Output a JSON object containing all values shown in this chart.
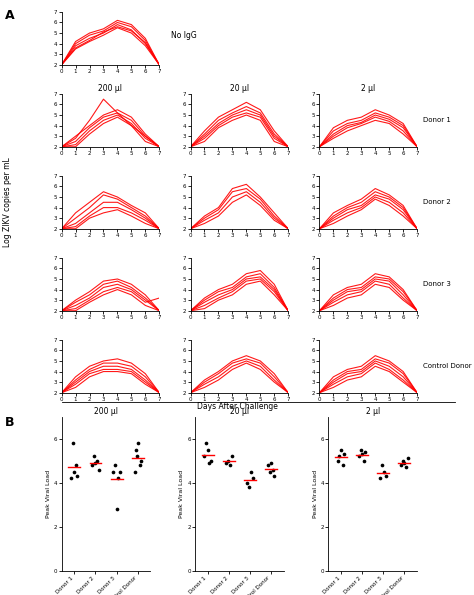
{
  "panel_A_label": "A",
  "panel_B_label": "B",
  "no_igg_title": "No IgG",
  "col_titles": [
    "200 μl",
    "20 μl",
    "2 μl"
  ],
  "row_labels": [
    "Donor 1",
    "Donor 2",
    "Donor 3",
    "Control Donor"
  ],
  "x_axis_label": "Days After Challenge",
  "y_axis_label": "Log ZIKV copies per mL",
  "line_color": "#FF0000",
  "line_alpha": 0.9,
  "line_width": 0.8,
  "days": [
    0,
    1,
    2,
    3,
    4,
    5,
    6,
    7
  ],
  "no_igg_curves": [
    [
      2,
      3.5,
      4.2,
      4.8,
      5.5,
      5.0,
      3.8,
      2.0
    ],
    [
      2,
      3.8,
      4.5,
      5.0,
      5.8,
      5.3,
      4.0,
      2.0
    ],
    [
      2,
      4.0,
      4.8,
      5.2,
      6.0,
      5.6,
      4.3,
      2.0
    ],
    [
      2,
      4.2,
      5.0,
      5.4,
      6.2,
      5.8,
      4.5,
      2.0
    ],
    [
      2,
      3.6,
      4.3,
      5.1,
      5.6,
      5.2,
      4.1,
      2.0
    ]
  ],
  "grid_curves": {
    "0": {
      "0": [
        [
          2,
          2.8,
          4.5,
          6.5,
          5.2,
          4.0,
          3.0,
          2.0
        ],
        [
          2,
          3.0,
          4.0,
          5.0,
          5.5,
          4.8,
          3.2,
          2.0
        ],
        [
          2,
          2.5,
          3.8,
          4.8,
          5.2,
          4.5,
          3.0,
          2.0
        ],
        [
          2,
          2.2,
          3.5,
          4.5,
          5.0,
          4.2,
          2.8,
          2.0
        ],
        [
          2,
          2.0,
          3.2,
          4.2,
          4.8,
          4.0,
          2.5,
          2.0
        ]
      ],
      "1": [
        [
          2,
          3.5,
          4.8,
          5.5,
          6.2,
          5.5,
          3.5,
          2.0
        ],
        [
          2,
          3.2,
          4.5,
          5.2,
          5.8,
          5.2,
          3.2,
          2.0
        ],
        [
          2,
          3.0,
          4.2,
          5.0,
          5.5,
          5.0,
          3.0,
          2.0
        ],
        [
          2,
          2.8,
          4.0,
          4.8,
          5.2,
          4.8,
          2.8,
          2.0
        ],
        [
          2,
          2.5,
          3.8,
          4.5,
          5.0,
          4.5,
          2.5,
          2.0
        ]
      ],
      "2": [
        [
          2,
          3.8,
          4.5,
          4.8,
          5.5,
          5.0,
          4.2,
          2.0
        ],
        [
          2,
          3.5,
          4.2,
          4.5,
          5.2,
          4.8,
          4.0,
          2.0
        ],
        [
          2,
          3.2,
          4.0,
          4.3,
          5.0,
          4.6,
          3.8,
          2.0
        ],
        [
          2,
          3.0,
          3.8,
          4.2,
          4.8,
          4.4,
          3.5,
          2.0
        ],
        [
          2,
          2.8,
          3.5,
          4.0,
          4.5,
          4.2,
          3.2,
          2.0
        ]
      ]
    },
    "1": {
      "0": [
        [
          2,
          3.5,
          4.5,
          5.5,
          5.0,
          4.2,
          3.5,
          2.0
        ],
        [
          2,
          3.0,
          4.0,
          5.2,
          4.8,
          4.0,
          3.2,
          2.0
        ],
        [
          2,
          2.5,
          3.5,
          4.5,
          4.5,
          3.8,
          3.0,
          2.0
        ],
        [
          2,
          2.2,
          3.2,
          4.0,
          4.0,
          3.5,
          2.8,
          2.0
        ],
        [
          2,
          2.0,
          3.0,
          3.5,
          3.8,
          3.2,
          2.5,
          2.0
        ]
      ],
      "1": [
        [
          2,
          3.2,
          4.0,
          5.8,
          6.2,
          5.0,
          3.5,
          2.0
        ],
        [
          2,
          3.0,
          3.8,
          5.5,
          5.8,
          4.8,
          3.2,
          2.0
        ],
        [
          2,
          2.8,
          3.5,
          5.0,
          5.5,
          4.5,
          3.0,
          2.0
        ],
        [
          2,
          2.5,
          3.2,
          4.5,
          5.2,
          4.2,
          2.8,
          2.0
        ]
      ],
      "2": [
        [
          2,
          3.5,
          4.2,
          4.8,
          5.8,
          5.2,
          4.2,
          2.0
        ],
        [
          2,
          3.2,
          4.0,
          4.5,
          5.5,
          5.0,
          4.0,
          2.0
        ],
        [
          2,
          3.0,
          3.8,
          4.2,
          5.2,
          4.8,
          3.8,
          2.0
        ],
        [
          2,
          2.8,
          3.5,
          4.0,
          5.0,
          4.5,
          3.5,
          2.0
        ],
        [
          2,
          2.5,
          3.2,
          3.8,
          4.8,
          4.2,
          3.2,
          2.0
        ]
      ]
    },
    "2": {
      "0": [
        [
          2,
          3.0,
          3.8,
          4.8,
          5.0,
          4.5,
          3.5,
          2.0
        ],
        [
          2,
          2.8,
          3.5,
          4.5,
          4.8,
          4.2,
          3.2,
          2.0
        ],
        [
          2,
          2.5,
          3.2,
          4.2,
          4.5,
          4.0,
          3.0,
          2.0
        ],
        [
          2,
          2.2,
          3.0,
          3.8,
          4.2,
          3.8,
          2.8,
          3.2
        ],
        [
          2,
          2.0,
          2.8,
          3.5,
          4.0,
          3.5,
          2.5,
          2.0
        ]
      ],
      "1": [
        [
          2,
          3.2,
          4.0,
          4.5,
          5.5,
          5.8,
          4.5,
          2.0
        ],
        [
          2,
          3.0,
          3.8,
          4.2,
          5.2,
          5.5,
          4.2,
          2.0
        ],
        [
          2,
          2.8,
          3.5,
          4.0,
          5.0,
          5.2,
          4.0,
          2.0
        ],
        [
          2,
          2.5,
          3.2,
          3.8,
          4.8,
          5.0,
          3.8,
          2.0
        ],
        [
          2,
          2.2,
          3.0,
          3.5,
          4.5,
          4.8,
          3.5,
          2.0
        ]
      ],
      "2": [
        [
          2,
          3.5,
          4.2,
          4.5,
          5.5,
          5.2,
          4.0,
          2.0
        ],
        [
          2,
          3.2,
          4.0,
          4.2,
          5.2,
          5.0,
          3.8,
          2.0
        ],
        [
          2,
          3.0,
          3.8,
          4.0,
          5.0,
          4.8,
          3.5,
          2.0
        ],
        [
          2,
          2.8,
          3.5,
          3.8,
          4.8,
          4.5,
          3.2,
          2.0
        ],
        [
          2,
          2.5,
          3.2,
          3.5,
          4.5,
          4.2,
          3.0,
          2.0
        ]
      ]
    },
    "3": {
      "0": [
        [
          2,
          3.5,
          4.5,
          5.0,
          5.2,
          4.8,
          3.8,
          2.0
        ],
        [
          2,
          3.2,
          4.2,
          4.8,
          4.8,
          4.5,
          3.5,
          2.0
        ],
        [
          2,
          3.0,
          4.0,
          4.5,
          4.5,
          4.2,
          3.2,
          2.0
        ],
        [
          2,
          2.8,
          3.8,
          4.2,
          4.2,
          4.0,
          3.0,
          2.0
        ],
        [
          2,
          2.5,
          3.5,
          4.0,
          4.0,
          3.8,
          2.8,
          2.0
        ]
      ],
      "1": [
        [
          2,
          3.2,
          4.0,
          5.0,
          5.5,
          5.0,
          3.8,
          2.0
        ],
        [
          2,
          3.0,
          3.8,
          4.8,
          5.2,
          4.8,
          3.5,
          2.0
        ],
        [
          2,
          2.8,
          3.5,
          4.5,
          5.0,
          4.5,
          3.2,
          2.0
        ],
        [
          2,
          2.5,
          3.2,
          4.2,
          4.8,
          4.2,
          3.0,
          2.0
        ]
      ],
      "2": [
        [
          2,
          3.5,
          4.2,
          4.5,
          5.5,
          5.0,
          4.0,
          2.0
        ],
        [
          2,
          3.2,
          4.0,
          4.2,
          5.2,
          4.8,
          3.8,
          2.0
        ],
        [
          2,
          3.0,
          3.8,
          4.0,
          5.0,
          4.5,
          3.5,
          2.0
        ],
        [
          2,
          2.8,
          3.5,
          3.8,
          4.8,
          4.2,
          3.2,
          2.0
        ],
        [
          2,
          2.5,
          3.2,
          3.5,
          4.5,
          4.0,
          3.0,
          2.0
        ]
      ]
    }
  },
  "scatter_B": {
    "200": {
      "Donor 1": [
        4.2,
        5.8,
        4.5,
        4.8,
        4.3
      ],
      "Donor 2": [
        4.8,
        5.2,
        4.9,
        5.0,
        4.6
      ],
      "Donor 3": [
        4.5,
        4.8,
        2.8,
        4.2,
        4.5
      ],
      "Control Donor": [
        4.5,
        5.5,
        5.2,
        5.8,
        4.8,
        5.0
      ]
    },
    "20": {
      "Donor 1": [
        5.2,
        5.8,
        5.5,
        4.9,
        5.0
      ],
      "Donor 2": [
        4.9,
        5.0,
        4.8,
        5.2
      ],
      "Donor 3": [
        4.0,
        3.8,
        4.5,
        4.2
      ],
      "Control Donor": [
        4.8,
        4.5,
        4.9,
        4.6,
        4.3
      ]
    },
    "2": {
      "Donor 1": [
        5.0,
        5.2,
        5.5,
        4.8,
        5.3
      ],
      "Donor 2": [
        5.2,
        5.5,
        5.3,
        5.0,
        5.4
      ],
      "Donor 3": [
        4.2,
        4.8,
        4.5,
        4.3
      ],
      "Control Donor": [
        4.8,
        5.0,
        4.9,
        4.7,
        5.1
      ]
    }
  },
  "scatter_means": {
    "200": {
      "Donor 1": 4.72,
      "Donor 2": 4.9,
      "Donor 3": 4.16,
      "Control Donor": 5.13
    },
    "20": {
      "Donor 1": 5.28,
      "Donor 2": 4.97,
      "Donor 3": 4.12,
      "Control Donor": 4.62
    },
    "2": {
      "Donor 1": 5.16,
      "Donor 2": 5.28,
      "Donor 3": 4.45,
      "Control Donor": 4.9
    }
  },
  "scatter_dot_color": "#000000",
  "scatter_line_color": "#FF0000",
  "ylim_A": [
    2,
    7
  ],
  "ylim_B": [
    0,
    7
  ],
  "yticks_A": [
    2,
    3,
    4,
    5,
    6,
    7
  ],
  "yticks_B": [
    0,
    2,
    4,
    6
  ],
  "xticks_A": [
    0,
    1,
    2,
    3,
    4,
    5,
    6,
    7
  ],
  "bg_color": "#ffffff"
}
